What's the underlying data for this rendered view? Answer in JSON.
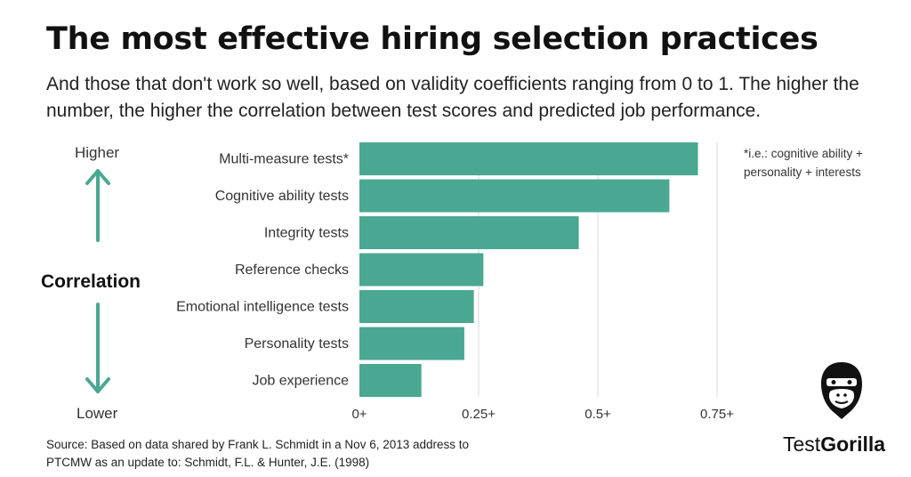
{
  "header": {
    "title": "The most effective hiring selection practices",
    "subtitle": "And those that don't work so well, based on validity coefficients ranging from 0 to 1. The higher the number, the higher the correlation between test scores and predicted job performance."
  },
  "axis_side": {
    "higher": "Higher",
    "lower": "Lower",
    "correlation": "Correlation"
  },
  "note": "*i.e.: cognitive ability + personality + interests",
  "source": "Source: Based on data shared by Frank L. Schmidt in a Nov 6, 2013 address to PTCMW as an update to: Schmidt, F.L. & Hunter, J.E. (1998)",
  "brand": {
    "part1": "Test",
    "part2": "Gorilla"
  },
  "colors": {
    "bar": "#4aa892",
    "arrow": "#4aa892",
    "grid": "#d9d9d9"
  },
  "chart_data": {
    "type": "bar",
    "orientation": "horizontal",
    "categories": [
      "Multi-measure tests*",
      "Cognitive ability tests",
      "Integrity tests",
      "Reference checks",
      "Emotional intelligence tests",
      "Personality tests",
      "Job experience"
    ],
    "values": [
      0.71,
      0.65,
      0.46,
      0.26,
      0.24,
      0.22,
      0.13
    ],
    "xticks": [
      {
        "value": 0,
        "label": "0+"
      },
      {
        "value": 0.25,
        "label": "0.25+"
      },
      {
        "value": 0.5,
        "label": "0.5+"
      },
      {
        "value": 0.75,
        "label": "0.75+"
      }
    ],
    "xlim": [
      0,
      0.75
    ],
    "grid": true
  }
}
